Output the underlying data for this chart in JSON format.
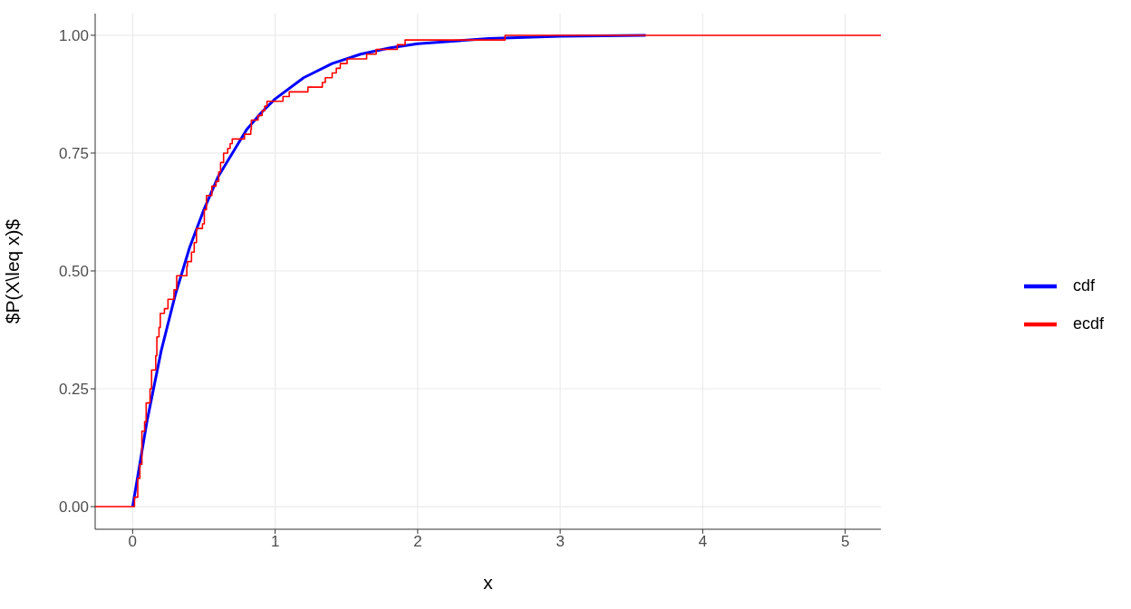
{
  "chart_data": {
    "type": "line",
    "xlabel": "x",
    "ylabel": "$P(X\\leq x)$",
    "xlim": [
      -0.263,
      5.25
    ],
    "ylim": [
      -0.048,
      1.046
    ],
    "xticks": [
      0,
      1,
      2,
      3,
      4,
      5
    ],
    "yticks": [
      {
        "value": 0,
        "label": "0.00"
      },
      {
        "value": 0.25,
        "label": "0.25"
      },
      {
        "value": 0.5,
        "label": "0.50"
      },
      {
        "value": 0.75,
        "label": "0.75"
      },
      {
        "value": 1,
        "label": "1.00"
      }
    ],
    "grid": true,
    "legend": "right",
    "line_style": "solid",
    "marker": "none",
    "series": [
      {
        "name": "cdf",
        "type": "line",
        "color": "#0000ff",
        "x": [
          0,
          0.1,
          0.2,
          0.3,
          0.4,
          0.5,
          0.6,
          0.7,
          0.8,
          0.9,
          1,
          1.2,
          1.4,
          1.6,
          1.8,
          2,
          2.5,
          3,
          3.6
        ],
        "values": [
          0,
          0.18,
          0.33,
          0.45,
          0.55,
          0.63,
          0.7,
          0.75,
          0.8,
          0.835,
          0.865,
          0.91,
          0.94,
          0.96,
          0.973,
          0.982,
          0.993,
          0.998,
          1
        ]
      },
      {
        "name": "ecdf",
        "type": "step",
        "color": "#ff0000",
        "x": [
          -0.263,
          0.013,
          0.036,
          0.051,
          0.065,
          0.084,
          0.095,
          0.122,
          0.133,
          0.162,
          0.17,
          0.185,
          0.194,
          0.223,
          0.248,
          0.29,
          0.309,
          0.38,
          0.385,
          0.413,
          0.432,
          0.448,
          0.49,
          0.503,
          0.518,
          0.556,
          0.585,
          0.604,
          0.617,
          0.638,
          0.667,
          0.684,
          0.699,
          0.785,
          0.829,
          0.833,
          0.88,
          0.909,
          0.927,
          0.943,
          1.055,
          1.099,
          1.23,
          1.331,
          1.352,
          1.4,
          1.429,
          1.457,
          1.505,
          1.642,
          1.709,
          1.857,
          1.912,
          2.613,
          5.25
        ],
        "values": [
          0,
          0.02,
          0.06,
          0.09,
          0.16,
          0.18,
          0.22,
          0.25,
          0.29,
          0.32,
          0.36,
          0.38,
          0.41,
          0.42,
          0.44,
          0.46,
          0.49,
          0.51,
          0.52,
          0.54,
          0.56,
          0.59,
          0.6,
          0.63,
          0.66,
          0.68,
          0.69,
          0.71,
          0.73,
          0.75,
          0.76,
          0.77,
          0.78,
          0.79,
          0.8,
          0.82,
          0.83,
          0.84,
          0.85,
          0.86,
          0.87,
          0.88,
          0.89,
          0.9,
          0.91,
          0.92,
          0.93,
          0.94,
          0.95,
          0.96,
          0.97,
          0.98,
          0.99,
          1,
          1
        ]
      }
    ]
  }
}
